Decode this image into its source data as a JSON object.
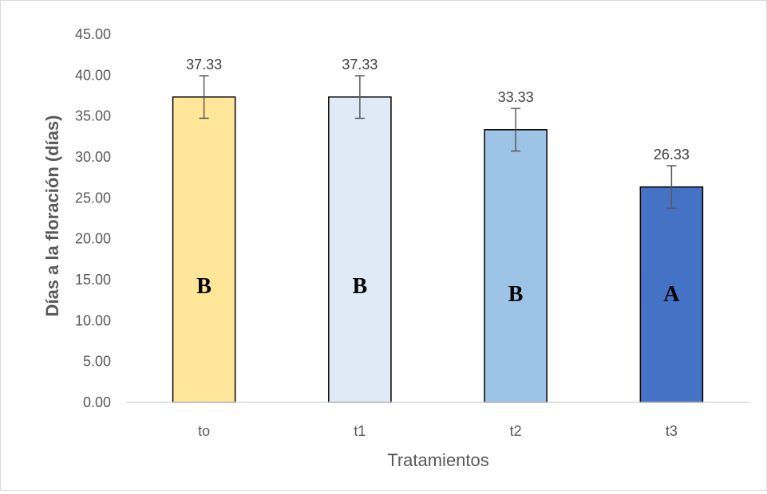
{
  "chart_data": {
    "type": "bar",
    "title": "",
    "xlabel": "Tratamientos",
    "ylabel": "Días a la floración (días)",
    "categories": [
      "to",
      "t1",
      "t2",
      "t3"
    ],
    "values": [
      37.33,
      37.33,
      33.33,
      26.33
    ],
    "data_labels": [
      "37.33",
      "37.33",
      "33.33",
      "26.33"
    ],
    "error": [
      2.6,
      2.6,
      2.6,
      2.6
    ],
    "group_letters": [
      "B",
      "B",
      "B",
      "A"
    ],
    "bar_colors": [
      "#FFE699",
      "#DEEBF7",
      "#9DC3E6",
      "#4472C4"
    ],
    "ylim": [
      0,
      45
    ],
    "yticks": [
      0,
      5,
      10,
      15,
      20,
      25,
      30,
      35,
      40,
      45
    ],
    "ytick_labels": [
      "0.00",
      "5.00",
      "10.00",
      "15.00",
      "20.00",
      "25.00",
      "30.00",
      "35.00",
      "40.00",
      "45.00"
    ],
    "grid": false,
    "legend": "none"
  }
}
